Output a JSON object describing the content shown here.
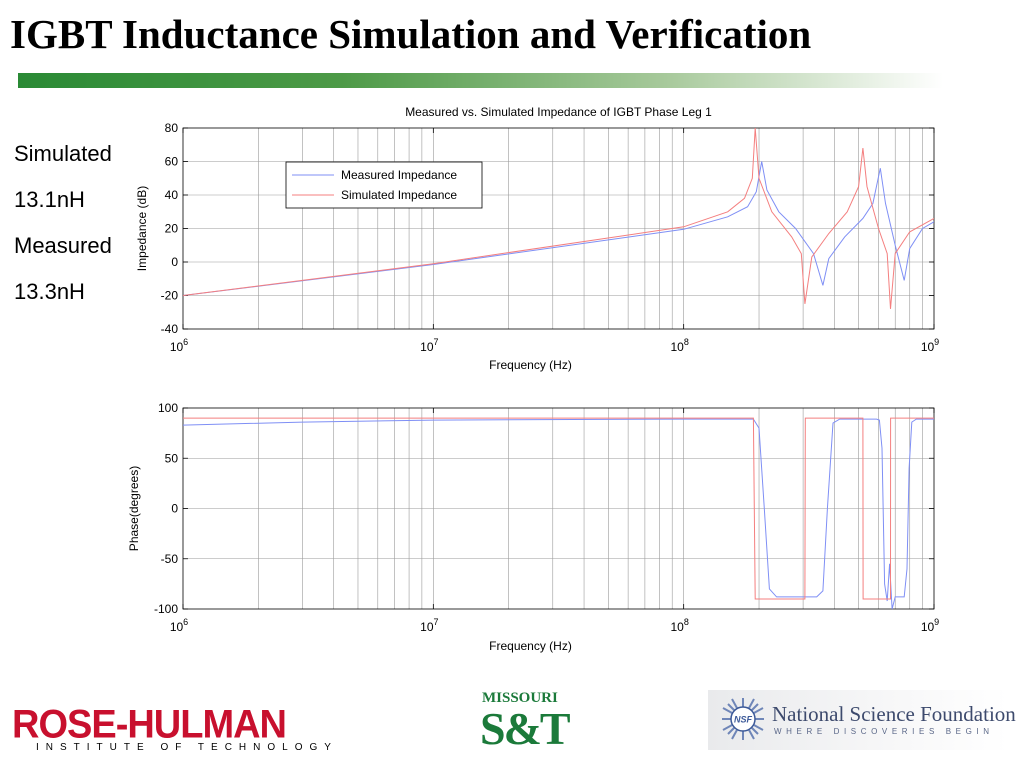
{
  "slide": {
    "title": "IGBT Inductance Simulation and Verification",
    "notes": [
      "Simulated",
      "13.1nH",
      "Measured",
      "13.3nH"
    ]
  },
  "colors": {
    "measured": "#7f8ff5",
    "simulated": "#f47f7f",
    "title_bar_start": "#2a8a35"
  },
  "chart_data": [
    {
      "type": "line",
      "title": "Measured vs. Simulated Impedance of IGBT Phase Leg 1",
      "xlabel": "Frequency (Hz)",
      "ylabel": "Impedance (dB)",
      "x_scale": "log",
      "xlim": [
        1000000,
        1000000000
      ],
      "ylim": [
        -40,
        80
      ],
      "x_ticks": [
        {
          "base": "10",
          "exp": "6"
        },
        {
          "base": "10",
          "exp": "7"
        },
        {
          "base": "10",
          "exp": "8"
        },
        {
          "base": "10",
          "exp": "9"
        }
      ],
      "y_ticks": [
        "80",
        "60",
        "40",
        "20",
        "0",
        "-20",
        "-40"
      ],
      "y_tick_values": [
        80,
        60,
        40,
        20,
        0,
        -20,
        -40
      ],
      "grid": true,
      "legend_position": "upper-left",
      "series": [
        {
          "name": "Measured Impedance",
          "points": [
            [
              1000000,
              -20
            ],
            [
              10000000,
              -1.5
            ],
            [
              100000000,
              19.5
            ],
            [
              150000000,
              27
            ],
            [
              180000000,
              33
            ],
            [
              195000000,
              42
            ],
            [
              205000000,
              60
            ],
            [
              215000000,
              43
            ],
            [
              240000000,
              30
            ],
            [
              280000000,
              20
            ],
            [
              330000000,
              5
            ],
            [
              360000000,
              -14
            ],
            [
              380000000,
              2
            ],
            [
              440000000,
              15
            ],
            [
              520000000,
              26
            ],
            [
              570000000,
              35
            ],
            [
              610000000,
              56
            ],
            [
              640000000,
              35
            ],
            [
              700000000,
              10
            ],
            [
              760000000,
              -11
            ],
            [
              800000000,
              8
            ],
            [
              900000000,
              20
            ],
            [
              1000000000,
              24
            ]
          ]
        },
        {
          "name": "Simulated Impedance",
          "points": [
            [
              1000000,
              -20
            ],
            [
              10000000,
              -1
            ],
            [
              100000000,
              21
            ],
            [
              150000000,
              30
            ],
            [
              175000000,
              38
            ],
            [
              188000000,
              50
            ],
            [
              193000000,
              80
            ],
            [
              200000000,
              50
            ],
            [
              225000000,
              30
            ],
            [
              270000000,
              15
            ],
            [
              295000000,
              5
            ],
            [
              305000000,
              -25
            ],
            [
              325000000,
              3
            ],
            [
              380000000,
              17
            ],
            [
              450000000,
              30
            ],
            [
              500000000,
              45
            ],
            [
              520000000,
              68
            ],
            [
              540000000,
              45
            ],
            [
              600000000,
              20
            ],
            [
              650000000,
              5
            ],
            [
              670000000,
              -28
            ],
            [
              700000000,
              5
            ],
            [
              800000000,
              18
            ],
            [
              1000000000,
              26
            ]
          ]
        }
      ]
    },
    {
      "type": "line",
      "title": "",
      "xlabel": "Frequency (Hz)",
      "ylabel": "Phase(degrees)",
      "x_scale": "log",
      "xlim": [
        1000000,
        1000000000
      ],
      "ylim": [
        -100,
        100
      ],
      "x_ticks": [
        {
          "base": "10",
          "exp": "6"
        },
        {
          "base": "10",
          "exp": "7"
        },
        {
          "base": "10",
          "exp": "8"
        },
        {
          "base": "10",
          "exp": "9"
        }
      ],
      "y_ticks": [
        "100",
        "50",
        "0",
        "-50",
        "-100"
      ],
      "y_tick_values": [
        100,
        50,
        0,
        -50,
        -100
      ],
      "grid": true,
      "series": [
        {
          "name": "Measured Impedance",
          "points": [
            [
              1000000,
              83
            ],
            [
              3000000,
              86
            ],
            [
              10000000,
              88
            ],
            [
              100000000,
              89
            ],
            [
              190000000,
              89
            ],
            [
              200000000,
              80
            ],
            [
              210000000,
              0
            ],
            [
              220000000,
              -80
            ],
            [
              235000000,
              -88
            ],
            [
              340000000,
              -88
            ],
            [
              360000000,
              -82
            ],
            [
              375000000,
              0
            ],
            [
              395000000,
              85
            ],
            [
              420000000,
              89
            ],
            [
              590000000,
              89
            ],
            [
              605000000,
              88
            ],
            [
              620000000,
              60
            ],
            [
              635000000,
              -75
            ],
            [
              650000000,
              -92
            ],
            [
              665000000,
              -55
            ],
            [
              680000000,
              -100
            ],
            [
              700000000,
              -88
            ],
            [
              760000000,
              -88
            ],
            [
              780000000,
              -60
            ],
            [
              795000000,
              40
            ],
            [
              815000000,
              86
            ],
            [
              850000000,
              89
            ],
            [
              1000000000,
              89
            ]
          ]
        },
        {
          "name": "Simulated Impedance",
          "points": [
            [
              1000000,
              90
            ],
            [
              190000000,
              90
            ],
            [
              193000000,
              -90
            ],
            [
              305000000,
              -90
            ],
            [
              306000000,
              90
            ],
            [
              520000000,
              90
            ],
            [
              521000000,
              -90
            ],
            [
              670000000,
              -90
            ],
            [
              671000000,
              90
            ],
            [
              1000000000,
              90
            ]
          ]
        }
      ]
    }
  ],
  "logos": {
    "rose_hulman": {
      "name": "ROSE-HULMAN",
      "subtitle": "INSTITUTE OF TECHNOLOGY"
    },
    "missouri_st": {
      "top": "MISSOURI",
      "main": "S&T"
    },
    "nsf": {
      "seal": "NSF",
      "name": "National Science Foundation",
      "tagline": "WHERE DISCOVERIES BEGIN"
    }
  }
}
